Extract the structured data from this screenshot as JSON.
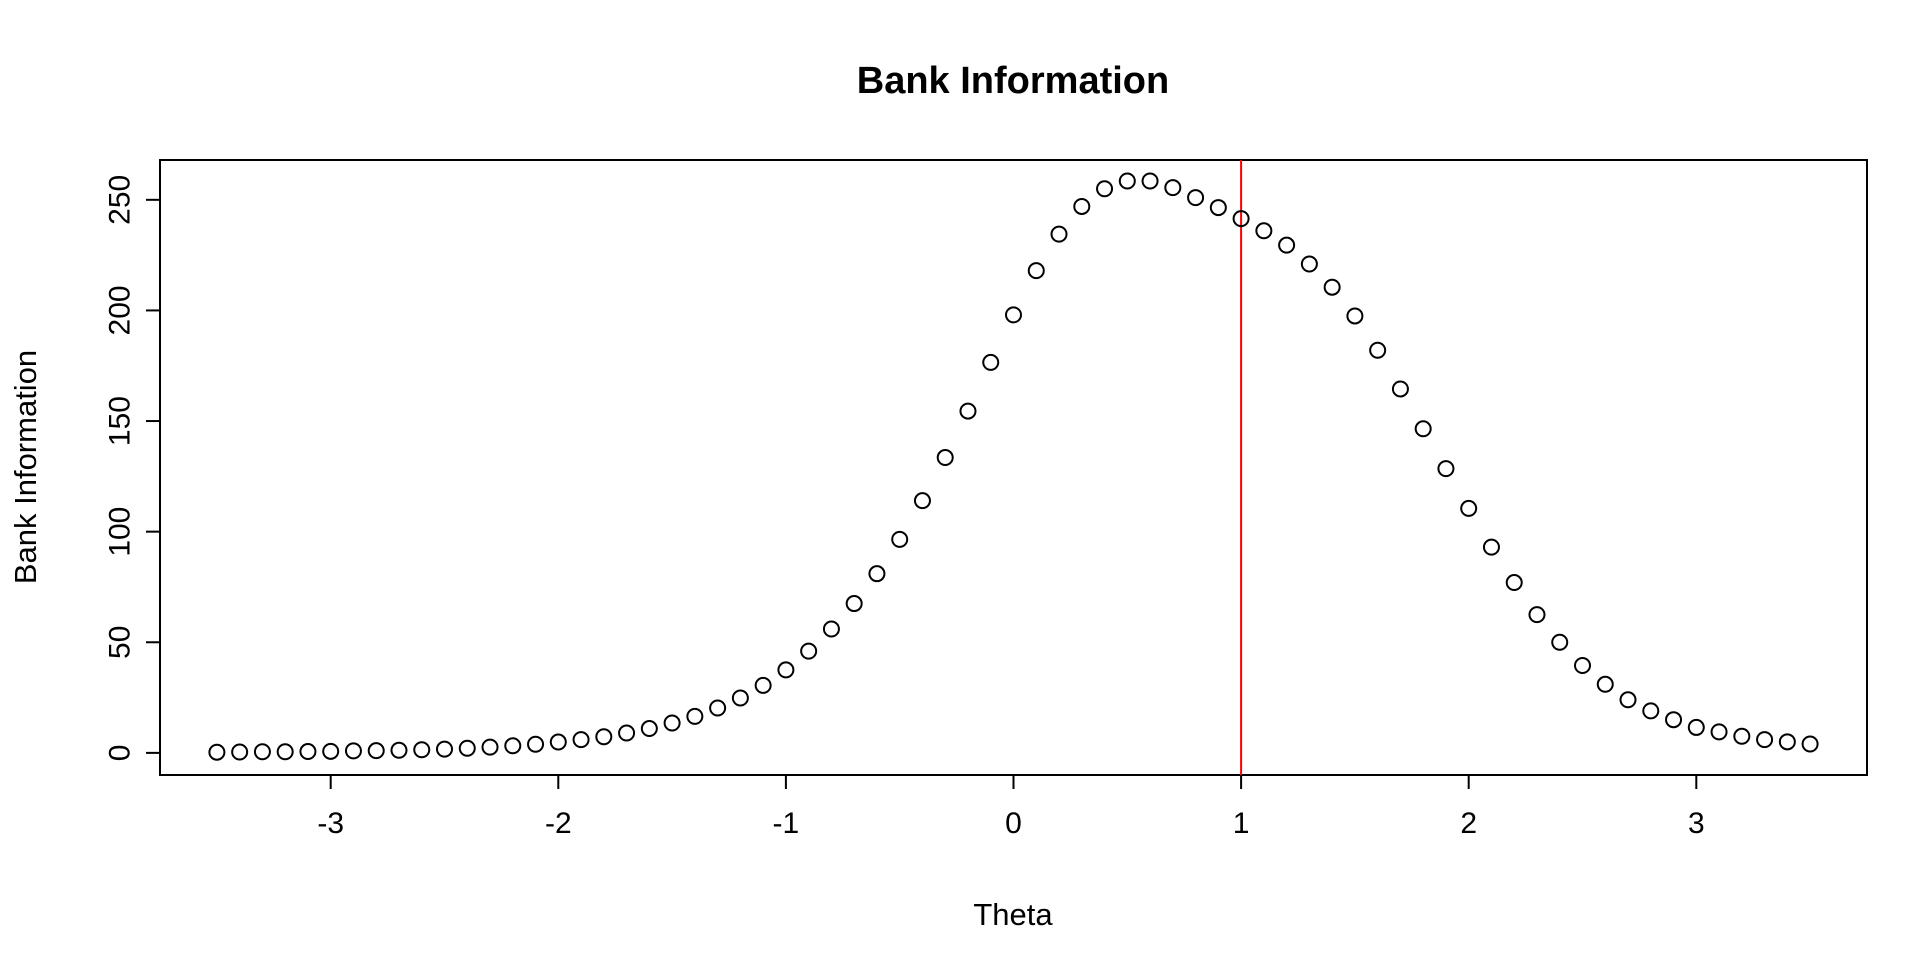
{
  "chart_data": {
    "type": "scatter",
    "title": "Bank Information",
    "xlabel": "Theta",
    "ylabel": "Bank Information",
    "xlim": [
      -3.75,
      3.75
    ],
    "ylim": [
      -10,
      268
    ],
    "xticks": [
      -3,
      -2,
      -1,
      0,
      1,
      2,
      3
    ],
    "xtick_labels": [
      "-3",
      "-2",
      "-1",
      "0",
      "1",
      "2",
      "3"
    ],
    "yticks": [
      0,
      50,
      100,
      150,
      200,
      250
    ],
    "ytick_labels": [
      "0",
      "50",
      "100",
      "150",
      "200",
      "250"
    ],
    "grid": false,
    "reference_line": {
      "axis": "x",
      "value": 1,
      "color": "#ff0000"
    },
    "marker": {
      "shape": "open-circle",
      "color": "#000000"
    },
    "series": [
      {
        "x": [
          -3.5,
          -3.4,
          -3.3,
          -3.2,
          -3.1,
          -3.0,
          -2.9,
          -2.8,
          -2.7,
          -2.6,
          -2.5,
          -2.4,
          -2.3,
          -2.2,
          -2.1,
          -2.0,
          -1.9,
          -1.8,
          -1.7,
          -1.6,
          -1.5,
          -1.4,
          -1.3,
          -1.2,
          -1.1,
          -1.0,
          -0.9,
          -0.8,
          -0.7,
          -0.6,
          -0.5,
          -0.4,
          -0.3,
          -0.2,
          -0.1,
          0.0,
          0.1,
          0.2,
          0.3,
          0.4,
          0.5,
          0.6,
          0.7,
          0.8,
          0.9,
          1.0,
          1.1,
          1.2,
          1.3,
          1.4,
          1.5,
          1.6,
          1.7,
          1.8,
          1.9,
          2.0,
          2.1,
          2.2,
          2.3,
          2.4,
          2.5,
          2.6,
          2.7,
          2.8,
          2.9,
          3.0,
          3.1,
          3.2,
          3.3,
          3.4,
          3.5
        ],
        "values": [
          0.3,
          0.4,
          0.5,
          0.5,
          0.6,
          0.7,
          0.9,
          1.0,
          1.2,
          1.4,
          1.7,
          2.1,
          2.6,
          3.2,
          3.9,
          4.9,
          6.0,
          7.3,
          9.0,
          11.0,
          13.5,
          16.5,
          20.3,
          24.8,
          30.5,
          37.5,
          46.0,
          56.0,
          67.5,
          81.0,
          96.5,
          114.0,
          133.5,
          154.5,
          176.5,
          198.0,
          218.0,
          234.5,
          247.0,
          255.0,
          258.5,
          258.5,
          255.5,
          251.0,
          246.5,
          241.5,
          236.0,
          229.5,
          221.0,
          210.5,
          197.5,
          182.0,
          164.5,
          146.5,
          128.5,
          110.5,
          93.0,
          77.0,
          62.5,
          50.0,
          39.5,
          31.0,
          24.0,
          19.0,
          15.0,
          11.5,
          9.5,
          7.5,
          6.0,
          5.0,
          4.0
        ]
      }
    ]
  }
}
